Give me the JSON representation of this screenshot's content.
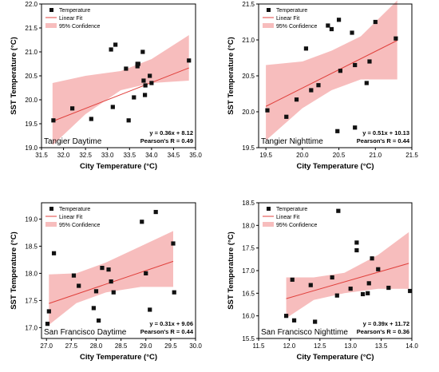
{
  "chart_data": [
    {
      "type": "scatter",
      "panel_label": "Tangier Daytime",
      "xlabel": "City Temperature (°C)",
      "ylabel": "SST Temperature (°C)",
      "xlim": [
        31.5,
        35.0
      ],
      "ylim": [
        19.0,
        22.0
      ],
      "xticks": [
        "31.5",
        "32.0",
        "32.5",
        "33.0",
        "33.5",
        "34.0",
        "34.5",
        "35.0"
      ],
      "yticks": [
        "19.0",
        "19.5",
        "20.0",
        "20.5",
        "21.0",
        "21.5",
        "22.0"
      ],
      "legend": {
        "position": "top-left",
        "entries": [
          "Temperature",
          "Linear Fit",
          "95% Confidence"
        ]
      },
      "equation": "y = 0.36x + 8.12",
      "pearson": "Pearson's R = 0.49",
      "fit": {
        "slope": 0.36,
        "intercept": 8.12,
        "x_range": [
          31.75,
          34.85
        ]
      },
      "confidence_band": {
        "x": [
          31.75,
          32.5,
          33.3,
          34.0,
          34.85
        ],
        "lower": [
          19.05,
          19.7,
          20.2,
          20.35,
          20.4
        ],
        "upper": [
          20.35,
          20.5,
          20.6,
          20.85,
          21.35
        ]
      },
      "series": [
        {
          "name": "Temperature",
          "x": [
            31.77,
            32.2,
            32.63,
            33.08,
            33.12,
            33.18,
            33.42,
            33.48,
            33.6,
            33.68,
            33.68,
            33.7,
            33.8,
            33.82,
            33.85,
            33.86,
            33.96,
            34.0,
            34.85
          ],
          "y": [
            19.57,
            19.82,
            19.6,
            21.05,
            19.85,
            21.15,
            20.65,
            19.57,
            20.05,
            20.7,
            20.75,
            20.75,
            21.0,
            20.4,
            20.1,
            20.3,
            20.5,
            20.35,
            20.82
          ]
        }
      ]
    },
    {
      "type": "scatter",
      "panel_label": "Tangier Nighttime",
      "xlabel": "City Temperature (°C)",
      "ylabel": "SST Temperature (°C)",
      "xlim": [
        19.4,
        21.5
      ],
      "ylim": [
        19.5,
        21.5
      ],
      "xticks": [
        "19.5",
        "20.0",
        "20.5",
        "21.0",
        "21.5"
      ],
      "yticks": [
        "19.5",
        "20.0",
        "20.5",
        "21.0",
        "21.5"
      ],
      "legend": {
        "position": "top-left",
        "entries": [
          "Temperature",
          "Linear Fit",
          "95% Confidence"
        ]
      },
      "equation": "y = 0.51x + 10.13",
      "pearson": "Pearson's R = 0.44",
      "fit": {
        "slope": 0.51,
        "intercept": 10.13,
        "x_range": [
          19.5,
          21.3
        ]
      },
      "confidence_band": {
        "x": [
          19.5,
          20.0,
          20.4,
          20.8,
          21.3
        ],
        "lower": [
          19.6,
          20.05,
          20.3,
          20.45,
          20.45
        ],
        "upper": [
          20.65,
          20.7,
          20.85,
          21.05,
          21.55
        ]
      },
      "series": [
        {
          "name": "Temperature",
          "x": [
            19.52,
            19.78,
            19.92,
            20.05,
            20.12,
            20.22,
            20.35,
            20.4,
            20.48,
            20.5,
            20.52,
            20.68,
            20.72,
            20.72,
            20.88,
            20.92,
            21.0,
            21.28
          ],
          "y": [
            20.02,
            19.93,
            20.17,
            20.88,
            20.3,
            20.37,
            21.2,
            21.15,
            19.73,
            21.28,
            20.57,
            21.1,
            20.65,
            19.78,
            20.4,
            20.7,
            21.25,
            21.02
          ]
        }
      ]
    },
    {
      "type": "scatter",
      "panel_label": "San Francisco Daytime",
      "xlabel": "City Temperature (°C)",
      "ylabel": "SST Temperature (°C)",
      "xlim": [
        26.9,
        30.0
      ],
      "ylim": [
        16.8,
        19.3
      ],
      "xticks": [
        "27.0",
        "27.5",
        "28.0",
        "28.5",
        "29.0",
        "29.5",
        "30.0"
      ],
      "yticks": [
        "17.0",
        "17.5",
        "18.0",
        "18.5",
        "19.0"
      ],
      "legend": {
        "position": "top-left",
        "entries": [
          "Temperature",
          "Linear Fit",
          "95% Confidence"
        ]
      },
      "equation": "y = 0.31x + 9.06",
      "pearson": "Pearson's R = 0.44",
      "fit": {
        "slope": 0.31,
        "intercept": 9.06,
        "x_range": [
          27.05,
          29.55
        ]
      },
      "confidence_band": {
        "x": [
          27.05,
          27.6,
          28.2,
          28.9,
          29.55
        ],
        "lower": [
          17.05,
          17.45,
          17.65,
          17.75,
          17.75
        ],
        "upper": [
          17.98,
          18.0,
          18.2,
          18.5,
          18.78
        ]
      },
      "series": [
        {
          "name": "Temperature",
          "x": [
            27.02,
            27.05,
            27.15,
            27.55,
            27.65,
            27.95,
            28.0,
            28.05,
            28.12,
            28.25,
            28.3,
            28.35,
            28.92,
            29.0,
            29.08,
            29.2,
            29.55,
            29.57
          ],
          "y": [
            17.07,
            17.3,
            18.37,
            17.96,
            17.77,
            17.36,
            17.67,
            17.13,
            18.1,
            18.07,
            17.85,
            17.65,
            18.95,
            18.0,
            17.33,
            19.13,
            18.55,
            17.65
          ]
        }
      ]
    },
    {
      "type": "scatter",
      "panel_label": "San Francisco Nighttime",
      "xlabel": "City Temperature (°C)",
      "ylabel": "SST Temperature (°C)",
      "xlim": [
        11.5,
        14.0
      ],
      "ylim": [
        15.5,
        18.5
      ],
      "xticks": [
        "11.5",
        "12.0",
        "12.5",
        "13.0",
        "13.5",
        "14.0"
      ],
      "yticks": [
        "15.5",
        "16.0",
        "16.5",
        "17.0",
        "17.5",
        "18.0",
        "18.5"
      ],
      "legend": {
        "position": "top-left",
        "entries": [
          "Temperature",
          "Linear Fit",
          "95% Confidence"
        ]
      },
      "equation": "y = 0.39x + 11.72",
      "pearson": "Pearson's R = 0.36",
      "fit": {
        "slope": 0.39,
        "intercept": 11.72,
        "x_range": [
          11.95,
          13.95
        ]
      },
      "confidence_band": {
        "x": [
          11.95,
          12.4,
          12.9,
          13.45,
          13.95
        ],
        "lower": [
          15.95,
          16.35,
          16.5,
          16.6,
          16.6
        ],
        "upper": [
          16.85,
          16.85,
          16.95,
          17.35,
          17.85
        ]
      },
      "series": [
        {
          "name": "Temperature",
          "x": [
            11.95,
            12.05,
            12.08,
            12.35,
            12.42,
            12.7,
            12.78,
            12.8,
            13.0,
            13.1,
            13.1,
            13.2,
            13.28,
            13.3,
            13.35,
            13.45,
            13.62,
            13.97
          ],
          "y": [
            16.0,
            16.8,
            15.9,
            16.68,
            15.87,
            16.85,
            16.45,
            18.32,
            16.6,
            17.62,
            17.45,
            16.48,
            16.5,
            16.72,
            17.27,
            17.03,
            16.62,
            16.55
          ]
        }
      ]
    }
  ]
}
